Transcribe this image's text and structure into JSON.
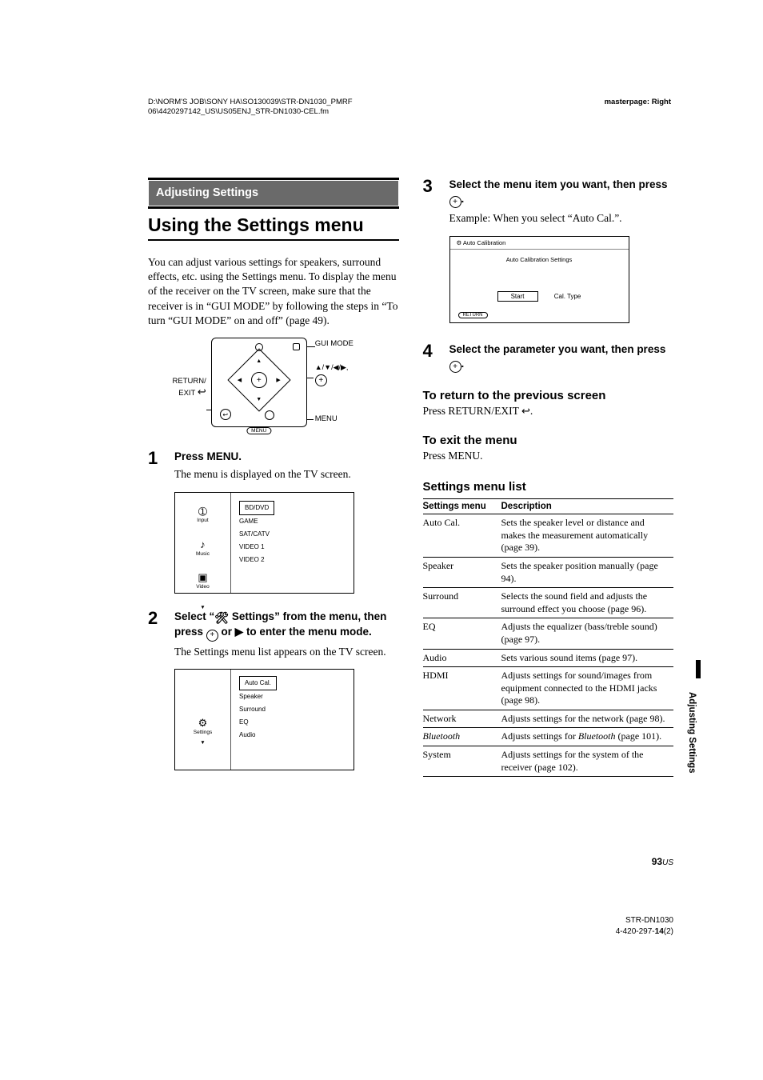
{
  "header": {
    "path_line1": "D:\\NORM'S JOB\\SONY HA\\SO130039\\STR-DN1030_PMRF",
    "path_line2": "06\\4420297142_US\\US05ENJ_STR-DN1030-CEL.fm",
    "masterpage": "masterpage: Right"
  },
  "section_bar": "Adjusting Settings",
  "main_heading": "Using the Settings menu",
  "intro": "You can adjust various settings for speakers, surround effects, etc. using the Settings menu. To display the menu of the receiver on the TV screen, make sure that the receiver is in “GUI MODE” by following the steps in “To turn “GUI MODE” on and off” (page 49).",
  "remote": {
    "return_exit": "RETURN/\nEXIT",
    "gui_mode": "GUI MODE",
    "dirs": "♥/♦/♣/♠,",
    "menu_small": "MENU",
    "menu_btn": "MENU",
    "plus": "+"
  },
  "steps": {
    "s1": {
      "num": "1",
      "title": "Press MENU.",
      "text": "The menu is displayed on the TV screen."
    },
    "menu1": {
      "side": [
        {
          "glyph": "➀",
          "label": "Input"
        },
        {
          "glyph": "♪",
          "label": "Music"
        },
        {
          "glyph": "▣",
          "label": "Video"
        }
      ],
      "arrow": "▼",
      "items": [
        "BD/DVD",
        "GAME",
        "SAT/CATV",
        "VIDEO 1",
        "VIDEO 2"
      ],
      "selected": 0
    },
    "s2": {
      "num": "2",
      "title_a": "Select “",
      "title_b": " Settings” from the menu, then press ",
      "title_c": " or ",
      "title_d": " to enter the menu mode.",
      "text": "The Settings menu list appears on the TV screen."
    },
    "menu2": {
      "side_glyph": "⚙",
      "side_label": "Settings",
      "arrow": "▼",
      "items": [
        "Auto Cal.",
        "Speaker",
        "Surround",
        "EQ",
        "Audio"
      ],
      "selected": 0
    },
    "s3": {
      "num": "3",
      "title_a": "Select the menu item you want, then press ",
      "title_b": ".",
      "text": "Example: When you select “Auto Cal.”."
    },
    "auto_screen": {
      "titlebar": "⚙ Auto Calibration",
      "sub": "Auto Calibration Settings",
      "btn1": "Start",
      "btn2": "Cal. Type",
      "return": "RETURN"
    },
    "s4": {
      "num": "4",
      "title_a": "Select the parameter you want, then press ",
      "title_b": "."
    }
  },
  "subsections": {
    "return_h": "To return to the previous screen",
    "return_t": "Press RETURN/EXIT ",
    "exit_h": "To exit the menu",
    "exit_t": "Press MENU.",
    "list_h": "Settings menu list"
  },
  "table": {
    "headers": [
      "Settings menu",
      "Description"
    ],
    "rows": [
      [
        "Auto Cal.",
        "Sets the speaker level or distance and makes the measurement automatically (page 39)."
      ],
      [
        "Speaker",
        "Sets the speaker position manually (page 94)."
      ],
      [
        "Surround",
        "Selects the sound field and adjusts the surround effect you choose (page 96)."
      ],
      [
        "EQ",
        "Adjusts the equalizer (bass/treble sound) (page 97)."
      ],
      [
        "Audio",
        "Sets various sound items (page 97)."
      ],
      [
        "HDMI",
        "Adjusts settings for sound/images from equipment connected to the HDMI jacks (page 98)."
      ],
      [
        "Network",
        "Adjusts settings for the network (page 98)."
      ],
      [
        "<i>Bluetooth</i>",
        "Adjusts settings for <i>Bluetooth</i> (page 101)."
      ],
      [
        "System",
        "Adjusts settings for the system of the receiver (page 102)."
      ]
    ]
  },
  "side_tab": "Adjusting Settings",
  "page_number": {
    "num": "93",
    "region": "US"
  },
  "footer": {
    "model": "STR-DN1030",
    "code_a": "4-420-297-",
    "code_b": "14",
    "code_c": "(2)"
  }
}
